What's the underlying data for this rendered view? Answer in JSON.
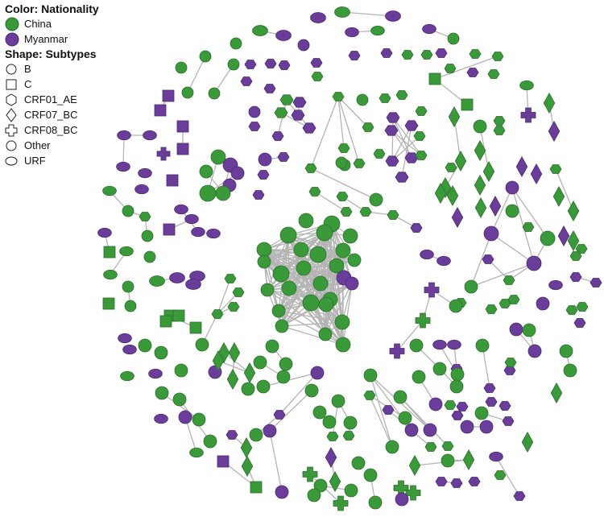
{
  "legend": {
    "color_title": "Color: Nationality",
    "nationalities": [
      {
        "label": "China",
        "color": "#3a9a3a"
      },
      {
        "label": "Myanmar",
        "color": "#6a3d9a"
      }
    ],
    "shape_title": "Shape: Subtypes",
    "subtypes": [
      {
        "label": "B",
        "shape": "circle"
      },
      {
        "label": "C",
        "shape": "square"
      },
      {
        "label": "CRF01_AE",
        "shape": "hexagon"
      },
      {
        "label": "CRF07_BC",
        "shape": "diamond"
      },
      {
        "label": "CRF08_BC",
        "shape": "cross"
      },
      {
        "label": "Other",
        "shape": "circle"
      },
      {
        "label": "URF",
        "shape": "ellipse"
      }
    ]
  },
  "colors": {
    "china": "#3a9a3a",
    "myanmar": "#6a3d9a",
    "edge": "#b4b4b4",
    "node_stroke": "#2c6e2c"
  }
}
